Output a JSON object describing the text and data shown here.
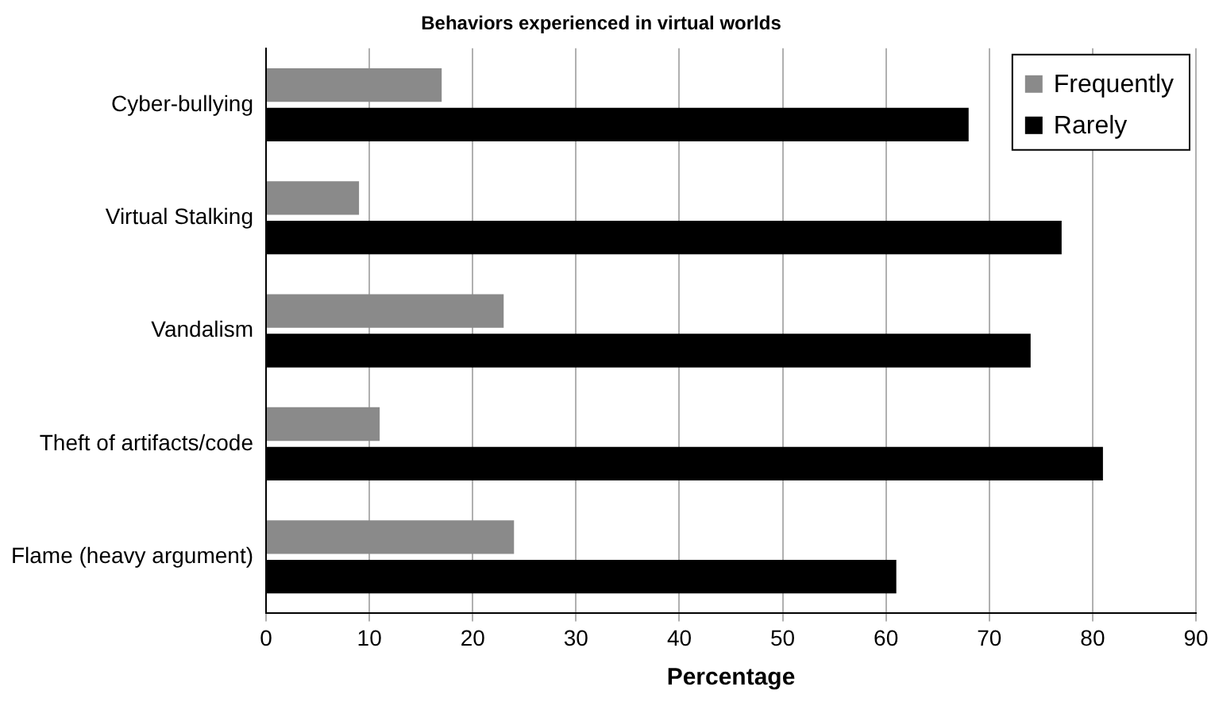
{
  "chart_data": {
    "type": "bar",
    "orientation": "horizontal",
    "title": "Behaviors experienced in virtual worlds",
    "xlabel": "Percentage",
    "categories": [
      "Cyber-bullying",
      "Virtual Stalking",
      "Vandalism",
      "Theft of artifacts/code",
      "Flame (heavy argument)"
    ],
    "series": [
      {
        "name": "Frequently",
        "color": "#8a8a8a",
        "values": [
          17,
          9,
          23,
          11,
          24
        ]
      },
      {
        "name": "Rarely",
        "color": "#000000",
        "values": [
          68,
          77,
          74,
          81,
          61
        ]
      }
    ],
    "xlim": [
      0,
      90
    ],
    "xticks": [
      0,
      10,
      20,
      30,
      40,
      50,
      60,
      70,
      80,
      90
    ],
    "grid": "x",
    "legend": "top right"
  }
}
